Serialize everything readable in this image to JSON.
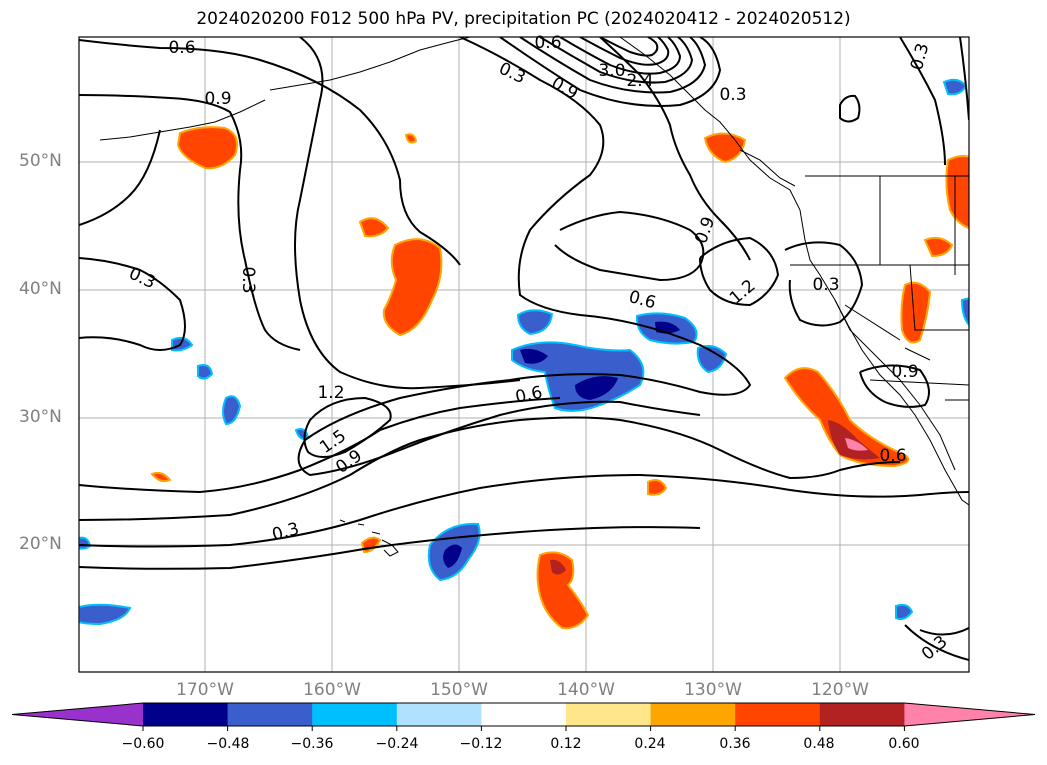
{
  "title": "2024020200 F012 500 hPa PV, precipitation PC (2024020412 - 2024020512)",
  "lat_labels": [
    "50°N",
    "40°N",
    "30°N",
    "20°N"
  ],
  "lon_labels": [
    "170°W",
    "160°W",
    "150°W",
    "140°W",
    "130°W",
    "120°W"
  ],
  "contour_labels": [
    "0.6",
    "0.9",
    "0.3",
    "0.3",
    "0.9",
    "3.0",
    "2.4",
    "0.3",
    "0.6",
    "0.3",
    "0.9",
    "1.2",
    "0.6",
    "0.3",
    "1.2",
    "1.5",
    "0.9",
    "0.6",
    "0.3",
    "0.9",
    "0.6",
    "0.3",
    "0.3"
  ],
  "colorbar": {
    "ticks": [
      "−0.60",
      "−0.48",
      "−0.36",
      "−0.24",
      "−0.12",
      "0.12",
      "0.24",
      "0.36",
      "0.48",
      "0.60"
    ],
    "colors": [
      "#9932cc",
      "#00008b",
      "#3a5fcd",
      "#00bfff",
      "#b0e2ff",
      "#ffffff",
      "#ffe68a",
      "#ffa500",
      "#ff4500",
      "#b22222",
      "#ff82ab"
    ]
  }
}
